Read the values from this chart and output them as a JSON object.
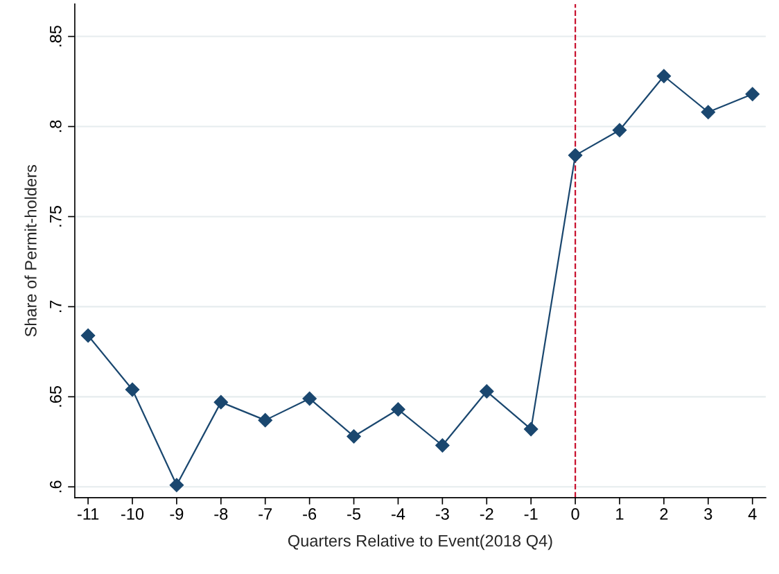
{
  "chart_data": {
    "type": "line",
    "xlabel": "Quarters Relative to Event(2018 Q4)",
    "ylabel": "Share of Permit-holders",
    "x": [
      -11,
      -10,
      -9,
      -8,
      -7,
      -6,
      -5,
      -4,
      -3,
      -2,
      -1,
      0,
      1,
      2,
      3,
      4
    ],
    "series": [
      {
        "color": "#1a476f",
        "values": [
          0.684,
          0.654,
          0.601,
          0.647,
          0.637,
          0.649,
          0.628,
          0.643,
          0.623,
          0.653,
          0.632,
          0.784,
          0.798,
          0.828,
          0.808,
          0.818
        ]
      }
    ],
    "marker": "diamond",
    "line_style": "solid",
    "xlim": [
      -11.3,
      4.3
    ],
    "xticks": [
      -11,
      -10,
      -9,
      -8,
      -7,
      -6,
      -5,
      -4,
      -3,
      -2,
      -1,
      0,
      1,
      2,
      3,
      4
    ],
    "ylim": [
      0.594,
      0.868
    ],
    "yticks": [
      {
        "value": 0.6,
        "label": ".6"
      },
      {
        "value": 0.65,
        "label": ".65"
      },
      {
        "value": 0.7,
        "label": ".7"
      },
      {
        "value": 0.75,
        "label": ".75"
      },
      {
        "value": 0.8,
        "label": ".8"
      },
      {
        "value": 0.85,
        "label": ".85"
      }
    ],
    "grid": "y",
    "ref_lines": [
      {
        "axis": "x",
        "value": 0,
        "color": "#c8102e",
        "line_style": "dashed"
      }
    ]
  }
}
